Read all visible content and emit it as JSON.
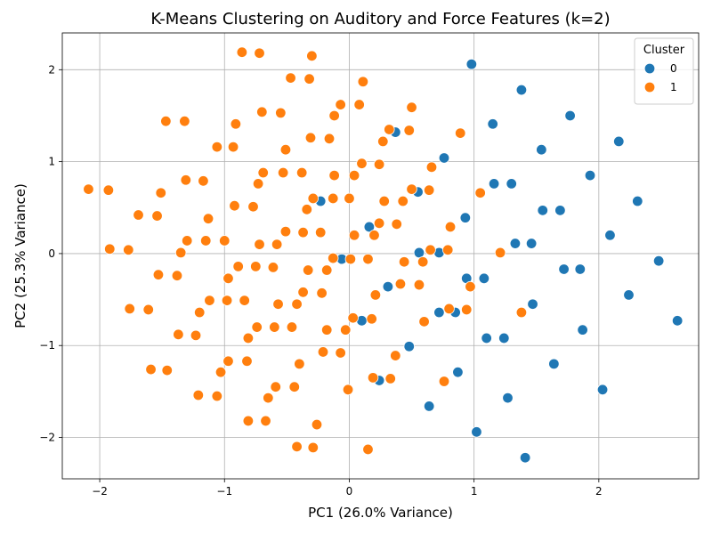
{
  "chart_data": {
    "type": "scatter",
    "title": "K-Means Clustering on Auditory and Force Features (k=2)",
    "xlabel": "PC1 (26.0% Variance)",
    "ylabel": "PC2 (25.3% Variance)",
    "xlim": [
      -2.3,
      2.8
    ],
    "ylim": [
      -2.45,
      2.4
    ],
    "xticks": [
      -2,
      -1,
      0,
      1,
      2
    ],
    "yticks": [
      -2,
      -1,
      0,
      1,
      2
    ],
    "xtick_labels": [
      "−2",
      "−1",
      "0",
      "1",
      "2"
    ],
    "ytick_labels": [
      "−2",
      "−1",
      "0",
      "1",
      "2"
    ],
    "grid": true,
    "legend": {
      "title": "Cluster",
      "position": "top-right"
    },
    "series": [
      {
        "name": "0",
        "color": "#1f77b4",
        "points": [
          [
            0.98,
            2.06
          ],
          [
            1.38,
            1.78
          ],
          [
            1.77,
            1.5
          ],
          [
            1.15,
            1.41
          ],
          [
            2.16,
            1.22
          ],
          [
            1.54,
            1.13
          ],
          [
            1.93,
            0.85
          ],
          [
            0.76,
            1.04
          ],
          [
            0.37,
            1.32
          ],
          [
            1.16,
            0.76
          ],
          [
            1.3,
            0.76
          ],
          [
            2.31,
            0.57
          ],
          [
            1.55,
            0.47
          ],
          [
            1.69,
            0.47
          ],
          [
            0.93,
            0.39
          ],
          [
            0.55,
            0.67
          ],
          [
            -0.23,
            0.57
          ],
          [
            0.16,
            0.29
          ],
          [
            2.09,
            0.2
          ],
          [
            1.33,
            0.11
          ],
          [
            1.46,
            0.11
          ],
          [
            0.56,
            0.01
          ],
          [
            0.72,
            0.01
          ],
          [
            -0.06,
            -0.06
          ],
          [
            2.48,
            -0.08
          ],
          [
            1.72,
            -0.17
          ],
          [
            1.85,
            -0.17
          ],
          [
            0.94,
            -0.27
          ],
          [
            1.08,
            -0.27
          ],
          [
            0.31,
            -0.36
          ],
          [
            2.24,
            -0.45
          ],
          [
            1.47,
            -0.55
          ],
          [
            0.72,
            -0.64
          ],
          [
            0.85,
            -0.64
          ],
          [
            0.1,
            -0.73
          ],
          [
            2.63,
            -0.73
          ],
          [
            1.87,
            -0.83
          ],
          [
            1.1,
            -0.92
          ],
          [
            1.24,
            -0.92
          ],
          [
            0.48,
            -1.01
          ],
          [
            1.64,
            -1.2
          ],
          [
            0.87,
            -1.29
          ],
          [
            0.24,
            -1.38
          ],
          [
            2.03,
            -1.48
          ],
          [
            1.27,
            -1.57
          ],
          [
            0.64,
            -1.66
          ],
          [
            1.02,
            -1.94
          ],
          [
            1.41,
            -2.22
          ]
        ]
      },
      {
        "name": "1",
        "color": "#ff7f0e",
        "points": [
          [
            -0.86,
            2.19
          ],
          [
            -0.72,
            2.18
          ],
          [
            -0.3,
            2.15
          ],
          [
            -0.47,
            1.91
          ],
          [
            -0.32,
            1.9
          ],
          [
            0.11,
            1.87
          ],
          [
            -0.07,
            1.62
          ],
          [
            0.08,
            1.62
          ],
          [
            0.5,
            1.59
          ],
          [
            -0.7,
            1.54
          ],
          [
            -0.55,
            1.53
          ],
          [
            -0.12,
            1.5
          ],
          [
            -1.47,
            1.44
          ],
          [
            -1.32,
            1.44
          ],
          [
            -0.91,
            1.41
          ],
          [
            0.32,
            1.35
          ],
          [
            0.48,
            1.34
          ],
          [
            0.89,
            1.31
          ],
          [
            -0.31,
            1.26
          ],
          [
            -0.16,
            1.25
          ],
          [
            0.27,
            1.22
          ],
          [
            -1.06,
            1.16
          ],
          [
            -0.93,
            1.16
          ],
          [
            -0.51,
            1.13
          ],
          [
            0.1,
            0.98
          ],
          [
            0.24,
            0.97
          ],
          [
            0.66,
            0.94
          ],
          [
            -0.69,
            0.88
          ],
          [
            -0.53,
            0.88
          ],
          [
            -0.38,
            0.88
          ],
          [
            -0.12,
            0.85
          ],
          [
            0.04,
            0.85
          ],
          [
            -1.31,
            0.8
          ],
          [
            -1.17,
            0.79
          ],
          [
            -0.73,
            0.76
          ],
          [
            0.5,
            0.7
          ],
          [
            0.64,
            0.69
          ],
          [
            -2.09,
            0.7
          ],
          [
            -1.93,
            0.69
          ],
          [
            -1.51,
            0.66
          ],
          [
            1.05,
            0.66
          ],
          [
            -0.29,
            0.6
          ],
          [
            -0.13,
            0.6
          ],
          [
            0.0,
            0.6
          ],
          [
            0.28,
            0.57
          ],
          [
            0.43,
            0.57
          ],
          [
            -0.92,
            0.52
          ],
          [
            -0.77,
            0.51
          ],
          [
            -0.34,
            0.48
          ],
          [
            -1.69,
            0.42
          ],
          [
            -1.54,
            0.41
          ],
          [
            -1.13,
            0.38
          ],
          [
            0.24,
            0.33
          ],
          [
            0.38,
            0.32
          ],
          [
            0.81,
            0.29
          ],
          [
            -0.51,
            0.24
          ],
          [
            -0.37,
            0.23
          ],
          [
            -0.23,
            0.23
          ],
          [
            0.04,
            0.2
          ],
          [
            0.2,
            0.2
          ],
          [
            -1.3,
            0.14
          ],
          [
            -1.15,
            0.14
          ],
          [
            -1.0,
            0.14
          ],
          [
            -0.72,
            0.1
          ],
          [
            -0.58,
            0.1
          ],
          [
            -1.92,
            0.05
          ],
          [
            -1.77,
            0.04
          ],
          [
            0.65,
            0.04
          ],
          [
            0.79,
            0.04
          ],
          [
            -1.35,
            0.01
          ],
          [
            1.21,
            0.01
          ],
          [
            -0.13,
            -0.05
          ],
          [
            0.01,
            -0.06
          ],
          [
            0.15,
            -0.06
          ],
          [
            0.44,
            -0.09
          ],
          [
            0.59,
            -0.09
          ],
          [
            -0.89,
            -0.14
          ],
          [
            -0.75,
            -0.14
          ],
          [
            -0.61,
            -0.15
          ],
          [
            -0.33,
            -0.18
          ],
          [
            -0.18,
            -0.18
          ],
          [
            -1.53,
            -0.23
          ],
          [
            -1.38,
            -0.24
          ],
          [
            -0.97,
            -0.27
          ],
          [
            0.41,
            -0.33
          ],
          [
            0.56,
            -0.34
          ],
          [
            0.97,
            -0.36
          ],
          [
            -0.37,
            -0.42
          ],
          [
            -0.22,
            -0.43
          ],
          [
            0.21,
            -0.45
          ],
          [
            -1.12,
            -0.51
          ],
          [
            -0.98,
            -0.51
          ],
          [
            -0.84,
            -0.51
          ],
          [
            -0.57,
            -0.55
          ],
          [
            -0.42,
            -0.55
          ],
          [
            -1.76,
            -0.6
          ],
          [
            -1.61,
            -0.61
          ],
          [
            0.8,
            -0.6
          ],
          [
            0.94,
            -0.61
          ],
          [
            -1.2,
            -0.64
          ],
          [
            1.38,
            -0.64
          ],
          [
            0.03,
            -0.7
          ],
          [
            0.18,
            -0.71
          ],
          [
            0.6,
            -0.74
          ],
          [
            -0.74,
            -0.8
          ],
          [
            -0.6,
            -0.8
          ],
          [
            -0.46,
            -0.8
          ],
          [
            -0.18,
            -0.83
          ],
          [
            -0.03,
            -0.83
          ],
          [
            -1.37,
            -0.88
          ],
          [
            -1.23,
            -0.89
          ],
          [
            -0.81,
            -0.92
          ],
          [
            0.37,
            -1.11
          ],
          [
            -0.21,
            -1.07
          ],
          [
            -0.07,
            -1.08
          ],
          [
            -0.97,
            -1.17
          ],
          [
            -0.82,
            -1.17
          ],
          [
            -0.4,
            -1.2
          ],
          [
            -1.59,
            -1.26
          ],
          [
            -1.46,
            -1.27
          ],
          [
            -1.03,
            -1.29
          ],
          [
            0.19,
            -1.35
          ],
          [
            0.33,
            -1.36
          ],
          [
            0.76,
            -1.39
          ],
          [
            -0.59,
            -1.45
          ],
          [
            -0.44,
            -1.45
          ],
          [
            -0.01,
            -1.48
          ],
          [
            -1.21,
            -1.54
          ],
          [
            -1.06,
            -1.55
          ],
          [
            -0.65,
            -1.57
          ],
          [
            -0.81,
            -1.82
          ],
          [
            -0.67,
            -1.82
          ],
          [
            -0.26,
            -1.86
          ],
          [
            -0.42,
            -2.1
          ],
          [
            -0.29,
            -2.11
          ],
          [
            0.15,
            -2.13
          ]
        ]
      }
    ]
  }
}
